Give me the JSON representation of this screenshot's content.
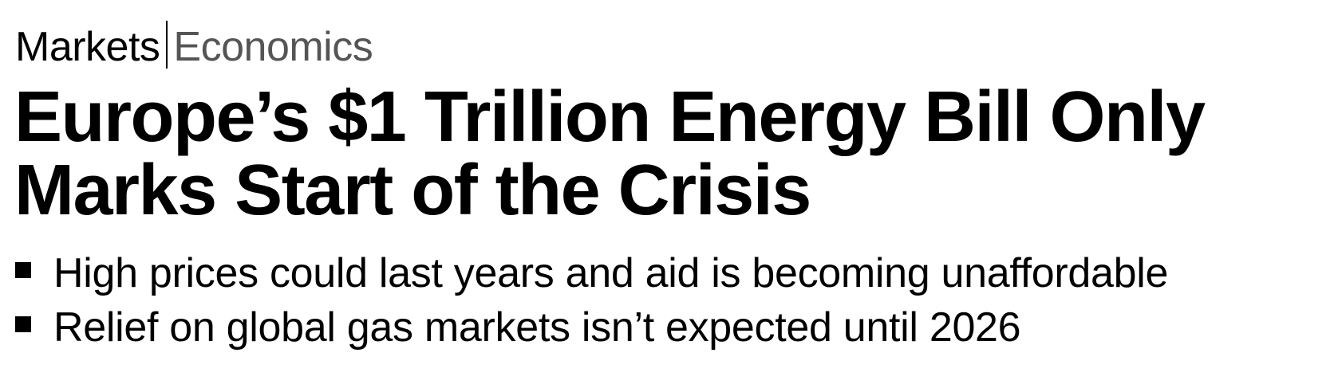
{
  "kicker": {
    "primary": "Markets",
    "secondary": "Economics"
  },
  "headline": "Europe’s $1 Trillion Energy Bill Only Marks Start of the Crisis",
  "bullets": [
    "High prices could last years and aid is becoming unaffordable",
    "Relief on global gas markets isn’t expected until 2026"
  ]
}
